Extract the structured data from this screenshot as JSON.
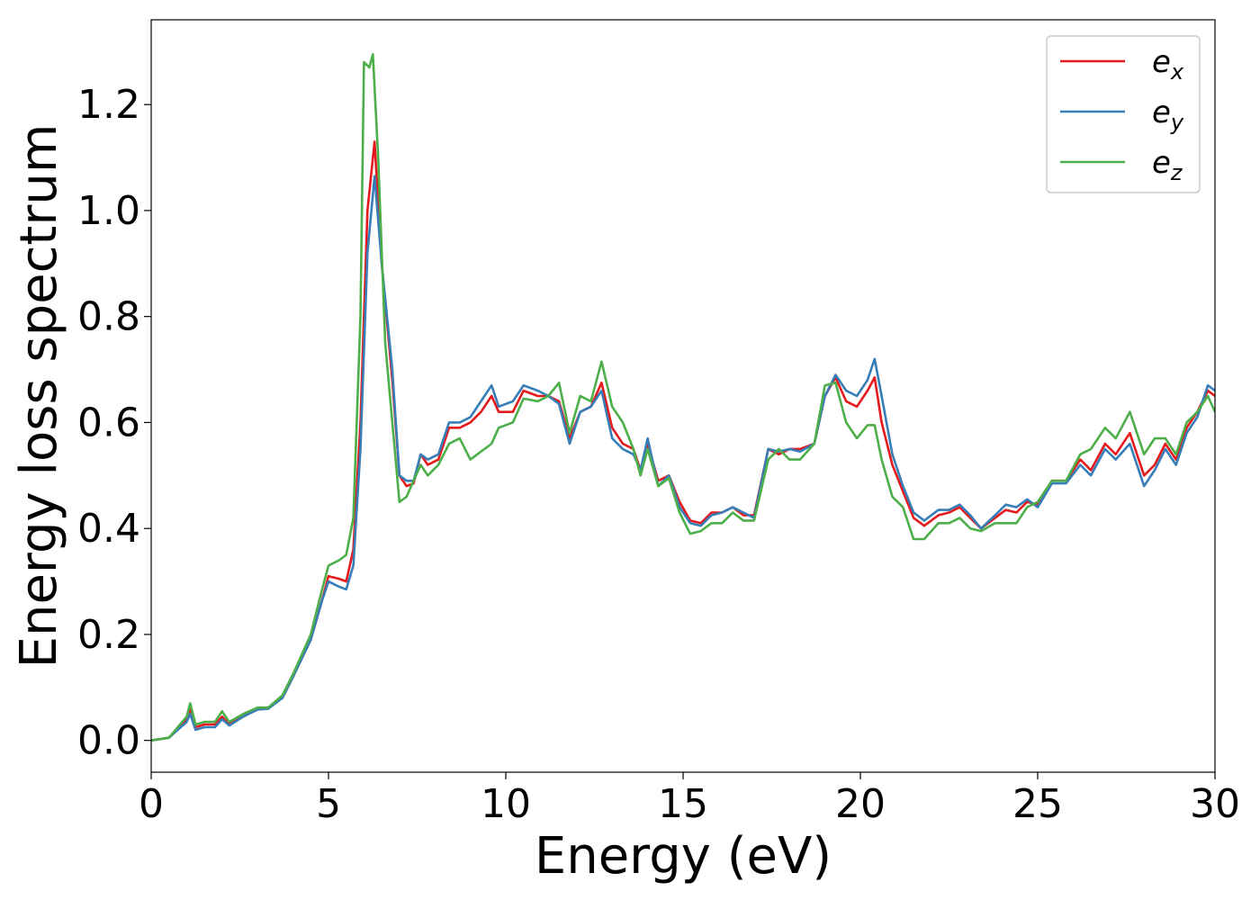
{
  "chart_data": {
    "type": "line",
    "title": "",
    "xlabel": "Energy (eV)",
    "ylabel": "Energy loss spectrum",
    "xlim": [
      0,
      30
    ],
    "ylim": [
      -0.06,
      1.36
    ],
    "x_ticks": [
      0,
      5,
      10,
      15,
      20,
      25,
      30
    ],
    "x_tick_labels": [
      "0",
      "5",
      "10",
      "15",
      "20",
      "25",
      "30"
    ],
    "y_ticks": [
      0.0,
      0.2,
      0.4,
      0.6,
      0.8,
      1.0,
      1.2
    ],
    "y_tick_labels": [
      "0.0",
      "0.2",
      "0.4",
      "0.6",
      "0.8",
      "1.0",
      "1.2"
    ],
    "grid": false,
    "legend_position": "top-right",
    "series": [
      {
        "name": "e_x",
        "legend_base": "e",
        "legend_sub": "x",
        "color": "#e41a1c",
        "points": [
          [
            0,
            0.0
          ],
          [
            0.5,
            0.005
          ],
          [
            1.0,
            0.04
          ],
          [
            1.1,
            0.06
          ],
          [
            1.25,
            0.025
          ],
          [
            1.5,
            0.03
          ],
          [
            1.8,
            0.03
          ],
          [
            2.0,
            0.045
          ],
          [
            2.2,
            0.03
          ],
          [
            2.6,
            0.048
          ],
          [
            3.0,
            0.06
          ],
          [
            3.3,
            0.062
          ],
          [
            3.7,
            0.08
          ],
          [
            4.0,
            0.12
          ],
          [
            4.5,
            0.19
          ],
          [
            4.8,
            0.26
          ],
          [
            5.0,
            0.31
          ],
          [
            5.3,
            0.305
          ],
          [
            5.5,
            0.3
          ],
          [
            5.7,
            0.36
          ],
          [
            5.9,
            0.6
          ],
          [
            6.1,
            1.0
          ],
          [
            6.3,
            1.13
          ],
          [
            6.5,
            0.9
          ],
          [
            6.8,
            0.68
          ],
          [
            7.0,
            0.5
          ],
          [
            7.2,
            0.48
          ],
          [
            7.4,
            0.485
          ],
          [
            7.6,
            0.54
          ],
          [
            7.8,
            0.52
          ],
          [
            8.1,
            0.53
          ],
          [
            8.4,
            0.59
          ],
          [
            8.7,
            0.59
          ],
          [
            9.0,
            0.6
          ],
          [
            9.3,
            0.62
          ],
          [
            9.6,
            0.65
          ],
          [
            9.8,
            0.62
          ],
          [
            10.2,
            0.62
          ],
          [
            10.5,
            0.66
          ],
          [
            10.9,
            0.65
          ],
          [
            11.2,
            0.65
          ],
          [
            11.5,
            0.64
          ],
          [
            11.8,
            0.57
          ],
          [
            12.1,
            0.62
          ],
          [
            12.4,
            0.63
          ],
          [
            12.7,
            0.675
          ],
          [
            13.0,
            0.59
          ],
          [
            13.3,
            0.56
          ],
          [
            13.6,
            0.55
          ],
          [
            13.8,
            0.51
          ],
          [
            14.0,
            0.56
          ],
          [
            14.3,
            0.49
          ],
          [
            14.6,
            0.5
          ],
          [
            14.9,
            0.45
          ],
          [
            15.2,
            0.415
          ],
          [
            15.5,
            0.41
          ],
          [
            15.8,
            0.43
          ],
          [
            16.1,
            0.43
          ],
          [
            16.4,
            0.44
          ],
          [
            16.7,
            0.425
          ],
          [
            17.0,
            0.425
          ],
          [
            17.4,
            0.55
          ],
          [
            17.7,
            0.54
          ],
          [
            18.0,
            0.55
          ],
          [
            18.3,
            0.55
          ],
          [
            18.7,
            0.56
          ],
          [
            19.0,
            0.65
          ],
          [
            19.3,
            0.685
          ],
          [
            19.6,
            0.64
          ],
          [
            19.9,
            0.63
          ],
          [
            20.2,
            0.66
          ],
          [
            20.4,
            0.685
          ],
          [
            20.6,
            0.6
          ],
          [
            20.9,
            0.52
          ],
          [
            21.2,
            0.47
          ],
          [
            21.5,
            0.42
          ],
          [
            21.8,
            0.405
          ],
          [
            22.2,
            0.425
          ],
          [
            22.5,
            0.43
          ],
          [
            22.8,
            0.44
          ],
          [
            23.1,
            0.42
          ],
          [
            23.4,
            0.4
          ],
          [
            23.8,
            0.42
          ],
          [
            24.1,
            0.435
          ],
          [
            24.4,
            0.43
          ],
          [
            24.7,
            0.45
          ],
          [
            25.0,
            0.445
          ],
          [
            25.4,
            0.49
          ],
          [
            25.8,
            0.49
          ],
          [
            26.2,
            0.53
          ],
          [
            26.5,
            0.51
          ],
          [
            26.9,
            0.56
          ],
          [
            27.2,
            0.54
          ],
          [
            27.6,
            0.58
          ],
          [
            28.0,
            0.5
          ],
          [
            28.3,
            0.52
          ],
          [
            28.6,
            0.56
          ],
          [
            28.9,
            0.53
          ],
          [
            29.2,
            0.59
          ],
          [
            29.5,
            0.62
          ],
          [
            29.8,
            0.66
          ],
          [
            30.0,
            0.65
          ]
        ]
      },
      {
        "name": "e_y",
        "legend_base": "e",
        "legend_sub": "y",
        "color": "#377eb8",
        "points": [
          [
            0,
            0.0
          ],
          [
            0.5,
            0.005
          ],
          [
            1.0,
            0.035
          ],
          [
            1.1,
            0.05
          ],
          [
            1.25,
            0.02
          ],
          [
            1.5,
            0.025
          ],
          [
            1.8,
            0.025
          ],
          [
            2.0,
            0.04
          ],
          [
            2.2,
            0.028
          ],
          [
            2.6,
            0.045
          ],
          [
            3.0,
            0.058
          ],
          [
            3.3,
            0.06
          ],
          [
            3.7,
            0.08
          ],
          [
            4.0,
            0.12
          ],
          [
            4.5,
            0.19
          ],
          [
            4.8,
            0.26
          ],
          [
            5.0,
            0.3
          ],
          [
            5.3,
            0.29
          ],
          [
            5.5,
            0.285
          ],
          [
            5.7,
            0.33
          ],
          [
            5.9,
            0.55
          ],
          [
            6.1,
            0.92
          ],
          [
            6.3,
            1.065
          ],
          [
            6.5,
            0.9
          ],
          [
            6.8,
            0.7
          ],
          [
            7.0,
            0.5
          ],
          [
            7.2,
            0.49
          ],
          [
            7.4,
            0.49
          ],
          [
            7.6,
            0.54
          ],
          [
            7.8,
            0.53
          ],
          [
            8.1,
            0.54
          ],
          [
            8.4,
            0.6
          ],
          [
            8.7,
            0.6
          ],
          [
            9.0,
            0.61
          ],
          [
            9.3,
            0.64
          ],
          [
            9.6,
            0.67
          ],
          [
            9.8,
            0.63
          ],
          [
            10.2,
            0.64
          ],
          [
            10.5,
            0.67
          ],
          [
            10.9,
            0.66
          ],
          [
            11.2,
            0.65
          ],
          [
            11.5,
            0.635
          ],
          [
            11.8,
            0.56
          ],
          [
            12.1,
            0.62
          ],
          [
            12.4,
            0.63
          ],
          [
            12.7,
            0.66
          ],
          [
            13.0,
            0.57
          ],
          [
            13.3,
            0.55
          ],
          [
            13.6,
            0.54
          ],
          [
            13.8,
            0.51
          ],
          [
            14.0,
            0.57
          ],
          [
            14.3,
            0.48
          ],
          [
            14.6,
            0.5
          ],
          [
            14.9,
            0.44
          ],
          [
            15.2,
            0.41
          ],
          [
            15.5,
            0.405
          ],
          [
            15.8,
            0.425
          ],
          [
            16.1,
            0.43
          ],
          [
            16.4,
            0.44
          ],
          [
            16.7,
            0.43
          ],
          [
            17.0,
            0.42
          ],
          [
            17.4,
            0.55
          ],
          [
            17.7,
            0.545
          ],
          [
            18.0,
            0.55
          ],
          [
            18.3,
            0.545
          ],
          [
            18.7,
            0.56
          ],
          [
            19.0,
            0.65
          ],
          [
            19.3,
            0.69
          ],
          [
            19.6,
            0.66
          ],
          [
            19.9,
            0.65
          ],
          [
            20.2,
            0.68
          ],
          [
            20.4,
            0.72
          ],
          [
            20.6,
            0.65
          ],
          [
            20.9,
            0.54
          ],
          [
            21.2,
            0.48
          ],
          [
            21.5,
            0.43
          ],
          [
            21.8,
            0.415
          ],
          [
            22.2,
            0.435
          ],
          [
            22.5,
            0.435
          ],
          [
            22.8,
            0.445
          ],
          [
            23.1,
            0.425
          ],
          [
            23.4,
            0.4
          ],
          [
            23.8,
            0.425
          ],
          [
            24.1,
            0.445
          ],
          [
            24.4,
            0.44
          ],
          [
            24.7,
            0.455
          ],
          [
            25.0,
            0.44
          ],
          [
            25.4,
            0.485
          ],
          [
            25.8,
            0.485
          ],
          [
            26.2,
            0.52
          ],
          [
            26.5,
            0.5
          ],
          [
            26.9,
            0.55
          ],
          [
            27.2,
            0.53
          ],
          [
            27.6,
            0.56
          ],
          [
            28.0,
            0.48
          ],
          [
            28.3,
            0.51
          ],
          [
            28.6,
            0.55
          ],
          [
            28.9,
            0.52
          ],
          [
            29.2,
            0.58
          ],
          [
            29.5,
            0.61
          ],
          [
            29.8,
            0.67
          ],
          [
            30.0,
            0.66
          ]
        ]
      },
      {
        "name": "e_z",
        "legend_base": "e",
        "legend_sub": "z",
        "color": "#4daf4a",
        "points": [
          [
            0,
            0.0
          ],
          [
            0.5,
            0.005
          ],
          [
            1.0,
            0.045
          ],
          [
            1.1,
            0.07
          ],
          [
            1.25,
            0.03
          ],
          [
            1.5,
            0.035
          ],
          [
            1.8,
            0.035
          ],
          [
            2.0,
            0.055
          ],
          [
            2.2,
            0.035
          ],
          [
            2.6,
            0.05
          ],
          [
            3.0,
            0.062
          ],
          [
            3.3,
            0.062
          ],
          [
            3.7,
            0.085
          ],
          [
            4.0,
            0.125
          ],
          [
            4.5,
            0.2
          ],
          [
            4.8,
            0.28
          ],
          [
            5.0,
            0.33
          ],
          [
            5.3,
            0.34
          ],
          [
            5.5,
            0.35
          ],
          [
            5.7,
            0.42
          ],
          [
            5.9,
            0.8
          ],
          [
            6.0,
            1.28
          ],
          [
            6.15,
            1.27
          ],
          [
            6.25,
            1.295
          ],
          [
            6.4,
            1.1
          ],
          [
            6.6,
            0.75
          ],
          [
            6.8,
            0.6
          ],
          [
            7.0,
            0.45
          ],
          [
            7.2,
            0.46
          ],
          [
            7.4,
            0.49
          ],
          [
            7.6,
            0.52
          ],
          [
            7.8,
            0.5
          ],
          [
            8.1,
            0.52
          ],
          [
            8.4,
            0.56
          ],
          [
            8.7,
            0.57
          ],
          [
            9.0,
            0.53
          ],
          [
            9.3,
            0.545
          ],
          [
            9.6,
            0.56
          ],
          [
            9.8,
            0.59
          ],
          [
            10.2,
            0.6
          ],
          [
            10.5,
            0.645
          ],
          [
            10.9,
            0.64
          ],
          [
            11.2,
            0.65
          ],
          [
            11.5,
            0.675
          ],
          [
            11.8,
            0.58
          ],
          [
            12.1,
            0.65
          ],
          [
            12.4,
            0.64
          ],
          [
            12.7,
            0.715
          ],
          [
            13.0,
            0.63
          ],
          [
            13.3,
            0.6
          ],
          [
            13.6,
            0.55
          ],
          [
            13.8,
            0.5
          ],
          [
            14.0,
            0.55
          ],
          [
            14.3,
            0.48
          ],
          [
            14.6,
            0.495
          ],
          [
            14.9,
            0.43
          ],
          [
            15.2,
            0.39
          ],
          [
            15.5,
            0.395
          ],
          [
            15.8,
            0.41
          ],
          [
            16.1,
            0.41
          ],
          [
            16.4,
            0.43
          ],
          [
            16.7,
            0.415
          ],
          [
            17.0,
            0.415
          ],
          [
            17.4,
            0.53
          ],
          [
            17.7,
            0.55
          ],
          [
            18.0,
            0.53
          ],
          [
            18.3,
            0.53
          ],
          [
            18.7,
            0.56
          ],
          [
            19.0,
            0.67
          ],
          [
            19.3,
            0.675
          ],
          [
            19.6,
            0.6
          ],
          [
            19.9,
            0.57
          ],
          [
            20.2,
            0.595
          ],
          [
            20.4,
            0.595
          ],
          [
            20.6,
            0.53
          ],
          [
            20.9,
            0.46
          ],
          [
            21.2,
            0.44
          ],
          [
            21.5,
            0.38
          ],
          [
            21.8,
            0.38
          ],
          [
            22.2,
            0.41
          ],
          [
            22.5,
            0.41
          ],
          [
            22.8,
            0.42
          ],
          [
            23.1,
            0.4
          ],
          [
            23.4,
            0.395
          ],
          [
            23.8,
            0.41
          ],
          [
            24.1,
            0.41
          ],
          [
            24.4,
            0.41
          ],
          [
            24.7,
            0.44
          ],
          [
            25.0,
            0.45
          ],
          [
            25.4,
            0.49
          ],
          [
            25.8,
            0.49
          ],
          [
            26.2,
            0.54
          ],
          [
            26.5,
            0.55
          ],
          [
            26.9,
            0.59
          ],
          [
            27.2,
            0.57
          ],
          [
            27.6,
            0.62
          ],
          [
            28.0,
            0.54
          ],
          [
            28.3,
            0.57
          ],
          [
            28.6,
            0.57
          ],
          [
            28.9,
            0.54
          ],
          [
            29.2,
            0.6
          ],
          [
            29.5,
            0.62
          ],
          [
            29.8,
            0.65
          ],
          [
            30.0,
            0.62
          ]
        ]
      }
    ]
  }
}
